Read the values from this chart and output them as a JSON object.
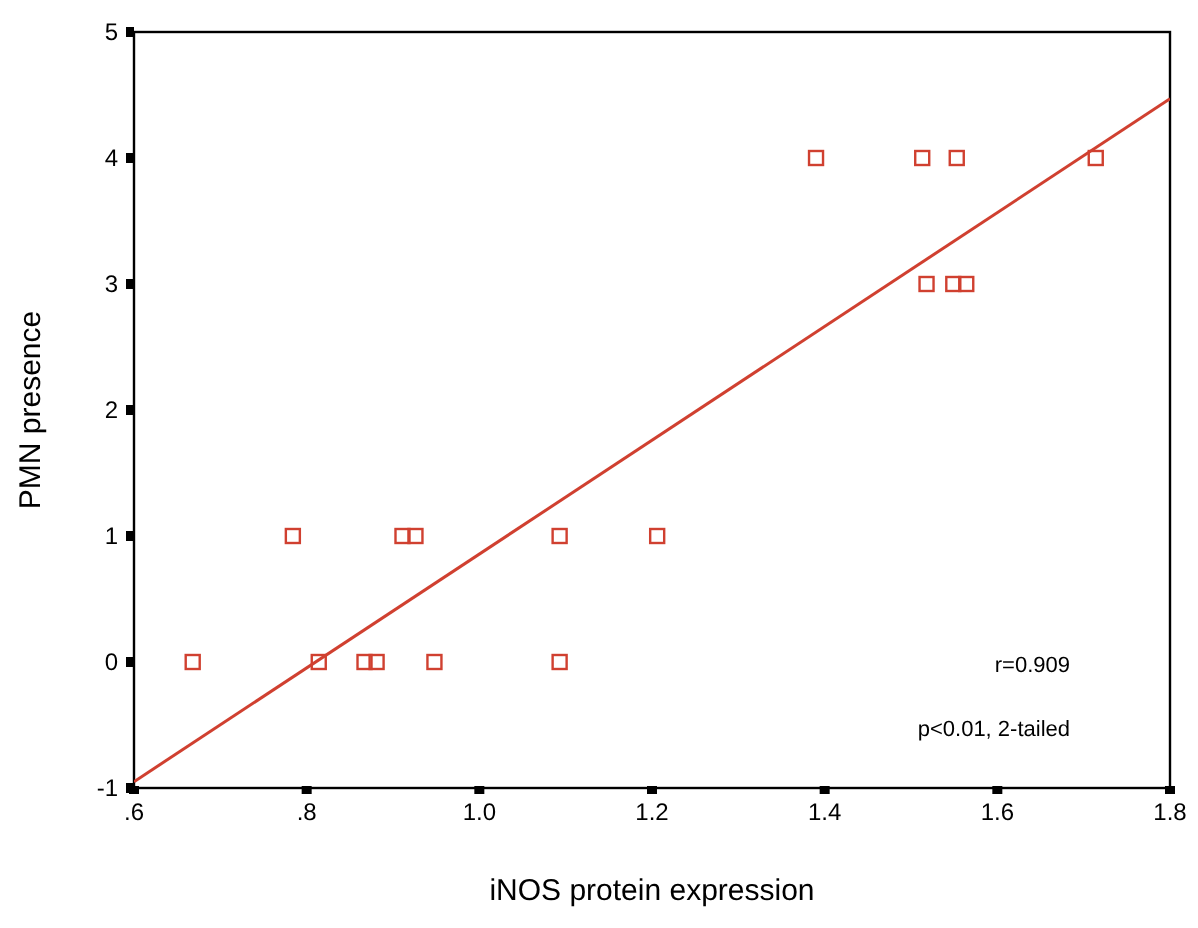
{
  "chart_data": {
    "type": "scatter",
    "xlabel": "iNOS protein expression",
    "ylabel": "PMN presence",
    "xlim": [
      0.6,
      1.8
    ],
    "ylim": [
      -1,
      5
    ],
    "xticks": [
      {
        "value": 0.6,
        "label": ".6"
      },
      {
        "value": 0.8,
        "label": ".8"
      },
      {
        "value": 1.0,
        "label": "1.0"
      },
      {
        "value": 1.2,
        "label": "1.2"
      },
      {
        "value": 1.4,
        "label": "1.4"
      },
      {
        "value": 1.6,
        "label": "1.6"
      },
      {
        "value": 1.8,
        "label": "1.8"
      }
    ],
    "yticks": [
      -1,
      0,
      1,
      2,
      3,
      4,
      5
    ],
    "grid": false,
    "series": [
      {
        "marker": "square",
        "color": "#d04030",
        "x": [
          1.39,
          1.513,
          1.553,
          1.714,
          1.518,
          1.549,
          1.564,
          0.784,
          0.911,
          0.926,
          1.093,
          1.206,
          0.668,
          0.814,
          0.867,
          0.881,
          0.948,
          1.093
        ],
        "values": [
          4,
          4,
          4,
          4,
          3,
          3,
          3,
          1,
          1,
          1,
          1,
          1,
          0,
          0,
          0,
          0,
          0,
          0
        ]
      },
      {
        "type": "line",
        "color": "#d04030",
        "x": [
          0.6,
          1.8
        ],
        "values": [
          -0.95,
          4.47
        ]
      }
    ],
    "annotations": [
      {
        "text": "r=0.909"
      },
      {
        "text": "p<0.01, 2-tailed"
      }
    ]
  }
}
